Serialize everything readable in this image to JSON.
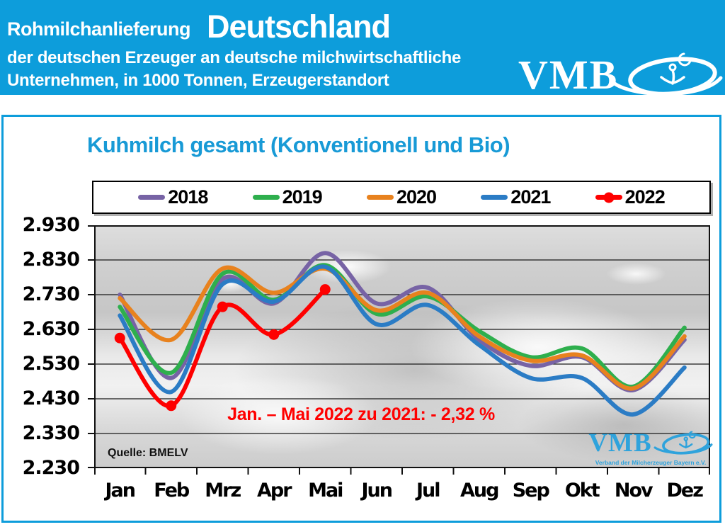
{
  "header": {
    "title_small": "Rohmilchanlieferung",
    "title_large": "Deutschland",
    "subtitle_line1": "der deutschen Erzeuger an deutsche milchwirtschaftliche",
    "subtitle_line2": "Unternehmen, in 1000 Tonnen, Erzeugerstandort",
    "logo_text": "VMB"
  },
  "panel": {
    "title": "Kuhmilch gesamt (Konventionell und Bio)",
    "annotation": "Jan. – Mai 2022 zu 2021: - 2,32 %",
    "source": "Quelle: BMELV",
    "watermark_text": "VMB",
    "watermark_subtext": "Verband der Milcherzeuger Bayern e.V."
  },
  "colors": {
    "banner_blue": "#0d9ddb",
    "title_blue": "#189ad6",
    "annotation_red": "#ff0000",
    "watermark_blue": "#2fa3dc"
  },
  "chart_data": {
    "type": "line",
    "title": "Kuhmilch gesamt (Konventionell und Bio)",
    "categories": [
      "Jan",
      "Feb",
      "Mrz",
      "Apr",
      "Mai",
      "Jun",
      "Jul",
      "Aug",
      "Sep",
      "Okt",
      "Nov",
      "Dez"
    ],
    "series": [
      {
        "name": "2018",
        "color": "#7763a5",
        "marker": false,
        "values": [
          2730,
          2490,
          2775,
          2705,
          2850,
          2705,
          2750,
          2600,
          2525,
          2550,
          2455,
          2600
        ]
      },
      {
        "name": "2019",
        "color": "#2eaf4d",
        "marker": false,
        "values": [
          2695,
          2505,
          2790,
          2715,
          2815,
          2675,
          2725,
          2625,
          2550,
          2575,
          2465,
          2635
        ]
      },
      {
        "name": "2020",
        "color": "#e8821e",
        "marker": false,
        "values": [
          2720,
          2600,
          2805,
          2735,
          2805,
          2685,
          2735,
          2610,
          2540,
          2555,
          2460,
          2610
        ]
      },
      {
        "name": "2021",
        "color": "#2b7cc5",
        "marker": false,
        "values": [
          2670,
          2450,
          2760,
          2710,
          2810,
          2645,
          2700,
          2585,
          2490,
          2490,
          2385,
          2520
        ]
      },
      {
        "name": "2022",
        "color": "#fe0000",
        "marker": true,
        "values": [
          2605,
          2410,
          2695,
          2615,
          2745
        ]
      }
    ],
    "ylim": [
      2230,
      2930
    ],
    "ytick_step": 100,
    "ytick_labels": [
      "2.930",
      "2.830",
      "2.730",
      "2.630",
      "2.530",
      "2.430",
      "2.330",
      "2.230"
    ],
    "grid": true,
    "legend_position": "top",
    "annotation": "Jan. – Mai 2022 zu 2021: - 2,32 %",
    "source": "Quelle: BMELV"
  }
}
